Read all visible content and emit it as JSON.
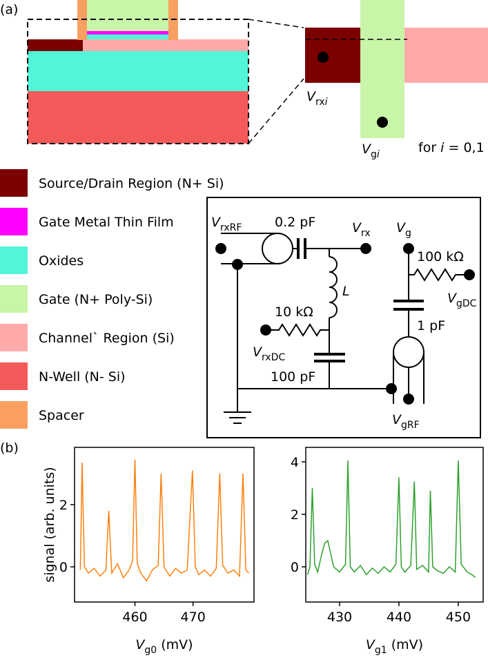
{
  "panel_labels": [
    "(a)",
    "(b)"
  ],
  "top_view": {
    "v_rx": {
      "base": "V",
      "sub": "rx",
      "sub_italic": "i"
    },
    "v_g": {
      "base": "V",
      "sub": "g",
      "sub_italic": "i"
    },
    "note": {
      "pre": "for",
      "italic": "i",
      "post": "= 0,1"
    }
  },
  "legend": [
    {
      "label": "Source/Drain Region (N+ Si)",
      "color": "#7b0000"
    },
    {
      "label": "Gate Metal Thin Film",
      "color": "#ff00ff"
    },
    {
      "label": "Oxides",
      "color": "#52f5d8"
    },
    {
      "label": "Gate (N+ Poly-Si)",
      "color": "#c8f5a8"
    },
    {
      "label": "Channel` Region (Si)",
      "color": "#ffaaaa"
    },
    {
      "label": "N-Well (N- Si)",
      "color": "#f55a5a"
    },
    {
      "label": "Spacer",
      "color": "#f9a060"
    }
  ],
  "circuit": {
    "v_rxrf": {
      "base": "V",
      "sub": "rxRF"
    },
    "c1": "0.2 pF",
    "v_rx": {
      "base": "V",
      "sub": "rx"
    },
    "v_g": {
      "base": "V",
      "sub": "g"
    },
    "r1": "100 kΩ",
    "inductor": "L",
    "v_gdc": {
      "base": "V",
      "sub": "gDC"
    },
    "r2": "10 kΩ",
    "c2": "1 pF",
    "v_rxdc": {
      "base": "V",
      "sub": "rxDC"
    },
    "c3": "100 pF",
    "v_grf": {
      "base": "V",
      "sub": "gRF"
    }
  },
  "chart_data": [
    {
      "type": "line",
      "ylabel": "signal (arb. units)",
      "xlabel": {
        "base": "V",
        "sub": "g0",
        "unit": "(mV)"
      },
      "xlim": [
        449.6,
        480.5
      ],
      "xticks": [
        460,
        470
      ],
      "ylim": [
        -1.13,
        3.84
      ],
      "yticks": [
        0,
        2
      ],
      "series": [
        {
          "color": "#ff7f0e",
          "x": [
            450.6,
            450.9,
            451.3,
            452,
            453,
            454,
            455,
            455.5,
            456,
            457,
            458,
            459,
            459.6,
            460.0,
            460.4,
            461,
            462,
            463,
            464,
            464.5,
            465,
            466,
            467,
            468,
            469,
            469.9,
            470.4,
            471,
            472,
            473,
            474,
            474.6,
            475.1,
            476,
            477,
            478,
            478.6,
            479.1,
            479.6
          ],
          "values": [
            -0.1,
            3.35,
            0.0,
            -0.2,
            -0.05,
            -0.3,
            -0.1,
            1.8,
            -0.2,
            0.1,
            -0.35,
            -0.1,
            0.2,
            3.45,
            0.1,
            -0.2,
            -0.45,
            -0.1,
            0.05,
            3.0,
            0.0,
            -0.3,
            -0.05,
            -0.2,
            -0.1,
            3.1,
            0.0,
            -0.25,
            -0.1,
            -0.3,
            -0.05,
            3.0,
            0.05,
            -0.2,
            -0.1,
            -0.3,
            3.0,
            -0.1,
            -0.2
          ]
        }
      ]
    },
    {
      "type": "line",
      "xlabel": {
        "base": "V",
        "sub": "g1",
        "unit": "(mV)"
      },
      "xlim": [
        424.3,
        454.2
      ],
      "xticks": [
        430,
        440,
        450
      ],
      "ylim": [
        -1.34,
        4.55
      ],
      "yticks": [
        0,
        2,
        4
      ],
      "series": [
        {
          "color": "#2ca02c",
          "x": [
            424.6,
            425.0,
            425.4,
            425.8,
            426.3,
            427,
            427.5,
            428,
            428.5,
            429,
            430,
            431,
            431.4,
            431.8,
            432.5,
            433.5,
            434.5,
            435.5,
            436.5,
            437.5,
            438.5,
            439.5,
            440.0,
            440.4,
            441,
            442,
            442.6,
            443,
            444,
            445,
            445.3,
            445.7,
            446.5,
            447.5,
            448.5,
            449.5,
            450,
            450.5,
            451.5,
            452.3,
            452.9
          ],
          "values": [
            -0.3,
            0.0,
            3.0,
            0.1,
            -0.2,
            0.5,
            0.9,
            1.0,
            0.5,
            0.0,
            -0.2,
            0.1,
            4.05,
            0.0,
            -0.2,
            0.05,
            -0.3,
            -0.05,
            -0.25,
            0.0,
            -0.2,
            0.1,
            3.4,
            0.0,
            -0.2,
            0.05,
            3.25,
            -0.1,
            0.05,
            -0.2,
            2.9,
            0.0,
            -0.15,
            -0.25,
            0.0,
            -0.2,
            4.05,
            0.1,
            -0.2,
            -0.3,
            -0.4
          ]
        }
      ]
    }
  ]
}
